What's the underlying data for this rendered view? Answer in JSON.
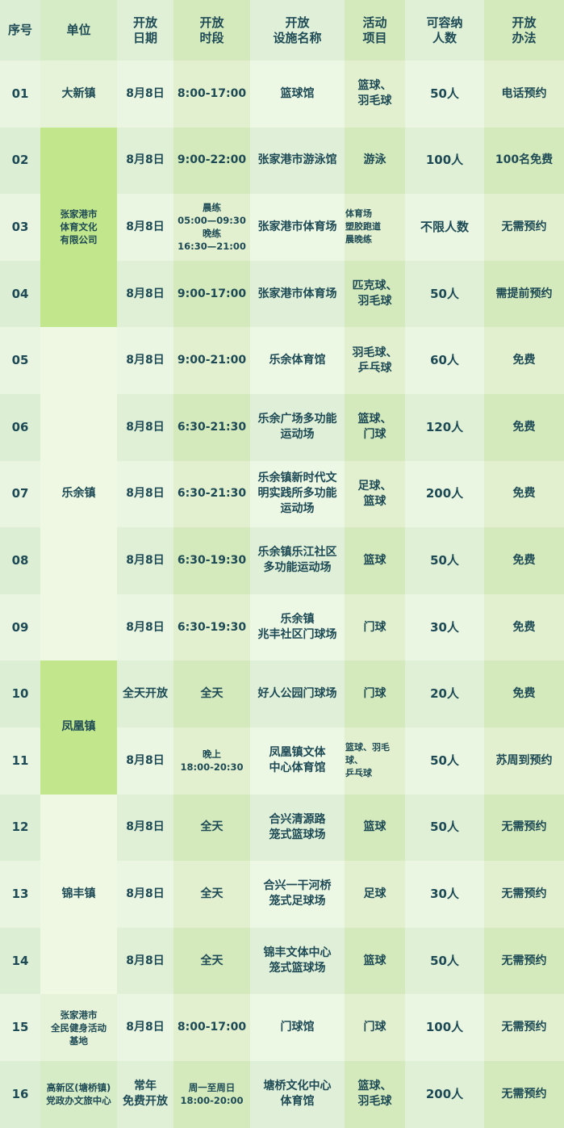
{
  "headers": [
    "序号",
    "单位",
    "开放\n日期",
    "开放\n时段",
    "开放\n设施名称",
    "活动\n项目",
    "可容纳\n人数",
    "开放\n办法"
  ],
  "colors": {
    "text": "#1d4a55",
    "unit_highlight": "#c2e68c",
    "unit_light": "#eef8e3"
  },
  "units": [
    {
      "name": "大新镇",
      "rows": 1,
      "style": "normal"
    },
    {
      "name": "张家港市\n体育文化\n有限公司",
      "rows": 3,
      "style": "highlight"
    },
    {
      "name": "乐余镇",
      "rows": 5,
      "style": "light"
    },
    {
      "name": "凤凰镇",
      "rows": 2,
      "style": "highlight"
    },
    {
      "name": "锦丰镇",
      "rows": 3,
      "style": "light"
    },
    {
      "name": "张家港市\n全民健身活动\n基地",
      "rows": 1,
      "style": "normal"
    },
    {
      "name": "高新区(塘桥镇)\n党政办文旅中心",
      "rows": 1,
      "style": "normal"
    }
  ],
  "rows": [
    {
      "no": "01",
      "date": "8月8日",
      "time": "8:00-17:00",
      "facility": "篮球馆",
      "activity": "篮球、\n羽毛球",
      "capacity": "50人",
      "method": "电话预约"
    },
    {
      "no": "02",
      "date": "8月8日",
      "time": "9:00-22:00",
      "facility": "张家港市游泳馆",
      "activity": "游泳",
      "capacity": "100人",
      "method": "100名免费"
    },
    {
      "no": "03",
      "date": "8月8日",
      "time": "晨练\n05:00—09:30\n晚练\n16:30—21:00",
      "facility": "张家港市体育场",
      "activity": "体育场\n塑胶跑道\n晨晚练",
      "capacity": "不限人数",
      "method": "无需预约"
    },
    {
      "no": "04",
      "date": "8月8日",
      "time": "9:00-17:00",
      "facility": "张家港市体育场",
      "activity": "匹克球、\n羽毛球",
      "capacity": "50人",
      "method": "需提前预约"
    },
    {
      "no": "05",
      "date": "8月8日",
      "time": "9:00-21:00",
      "facility": "乐余体育馆",
      "activity": "羽毛球、\n乒乓球",
      "capacity": "60人",
      "method": "免费"
    },
    {
      "no": "06",
      "date": "8月8日",
      "time": "6:30-21:30",
      "facility": "乐余广场多功能\n运动场",
      "activity": "篮球、\n门球",
      "capacity": "120人",
      "method": "免费"
    },
    {
      "no": "07",
      "date": "8月8日",
      "time": "6:30-21:30",
      "facility": "乐余镇新时代文\n明实践所多功能\n运动场",
      "activity": "足球、\n篮球",
      "capacity": "200人",
      "method": "免费"
    },
    {
      "no": "08",
      "date": "8月8日",
      "time": "6:30-19:30",
      "facility": "乐余镇乐江社区\n多功能运动场",
      "activity": "篮球",
      "capacity": "50人",
      "method": "免费"
    },
    {
      "no": "09",
      "date": "8月8日",
      "time": "6:30-19:30",
      "facility": "乐余镇\n兆丰社区门球场",
      "activity": "门球",
      "capacity": "30人",
      "method": "免费"
    },
    {
      "no": "10",
      "date": "全天开放",
      "time": "全天",
      "facility": "好人公园门球场",
      "activity": "门球",
      "capacity": "20人",
      "method": "免费"
    },
    {
      "no": "11",
      "date": "8月8日",
      "time": "晚上\n18:00-20:30",
      "facility": "凤凰镇文体\n中心体育馆",
      "activity": "篮球、羽毛球、\n乒乓球",
      "capacity": "50人",
      "method": "苏周到预约"
    },
    {
      "no": "12",
      "date": "8月8日",
      "time": "全天",
      "facility": "合兴清源路\n笼式篮球场",
      "activity": "篮球",
      "capacity": "50人",
      "method": "无需预约"
    },
    {
      "no": "13",
      "date": "8月8日",
      "time": "全天",
      "facility": "合兴一干河桥\n笼式足球场",
      "activity": "足球",
      "capacity": "30人",
      "method": "无需预约"
    },
    {
      "no": "14",
      "date": "8月8日",
      "time": "全天",
      "facility": "锦丰文体中心\n笼式篮球场",
      "activity": "篮球",
      "capacity": "50人",
      "method": "无需预约"
    },
    {
      "no": "15",
      "date": "8月8日",
      "time": "8:00-17:00",
      "facility": "门球馆",
      "activity": "门球",
      "capacity": "100人",
      "method": "无需预约"
    },
    {
      "no": "16",
      "date": "常年\n免费开放",
      "time": "周一至周日\n18:00-20:00",
      "facility": "塘桥文化中心\n体育馆",
      "activity": "篮球、\n羽毛球",
      "capacity": "200人",
      "method": "无需预约"
    }
  ]
}
